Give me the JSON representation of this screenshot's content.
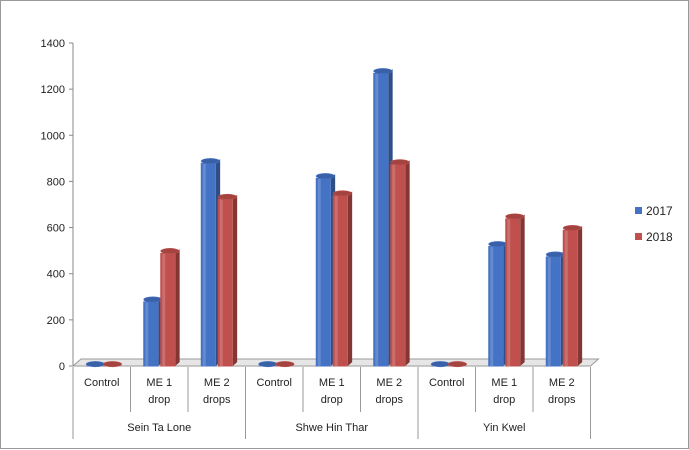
{
  "chart_data": {
    "type": "bar",
    "groups": [
      {
        "name": "Sein Ta Lone",
        "categories": [
          [
            "Control"
          ],
          [
            "ME 1",
            "drop"
          ],
          [
            "ME 2",
            "drops"
          ]
        ]
      },
      {
        "name": "Shwe Hin Thar",
        "categories": [
          [
            "Control"
          ],
          [
            "ME 1",
            "drop"
          ],
          [
            "ME 2",
            "drops"
          ]
        ]
      },
      {
        "name": "Yin Kwel",
        "categories": [
          [
            "Control"
          ],
          [
            "ME 1",
            "drop"
          ],
          [
            "ME 2",
            "drops"
          ]
        ]
      }
    ],
    "series": [
      {
        "name": "2017",
        "color": "#4472c4",
        "values": [
          0,
          280,
          880,
          0,
          815,
          1270,
          0,
          520,
          475
        ]
      },
      {
        "name": "2018",
        "color": "#c0504d",
        "values": [
          0,
          490,
          725,
          0,
          740,
          875,
          0,
          640,
          590
        ]
      }
    ],
    "ylim": [
      0,
      1400
    ],
    "yticks": [
      "0",
      "200",
      "400",
      "600",
      "800",
      "1000",
      "1200",
      "1400"
    ],
    "title": "",
    "xlabel": "",
    "ylabel": "",
    "grid": false,
    "legend": "right"
  }
}
